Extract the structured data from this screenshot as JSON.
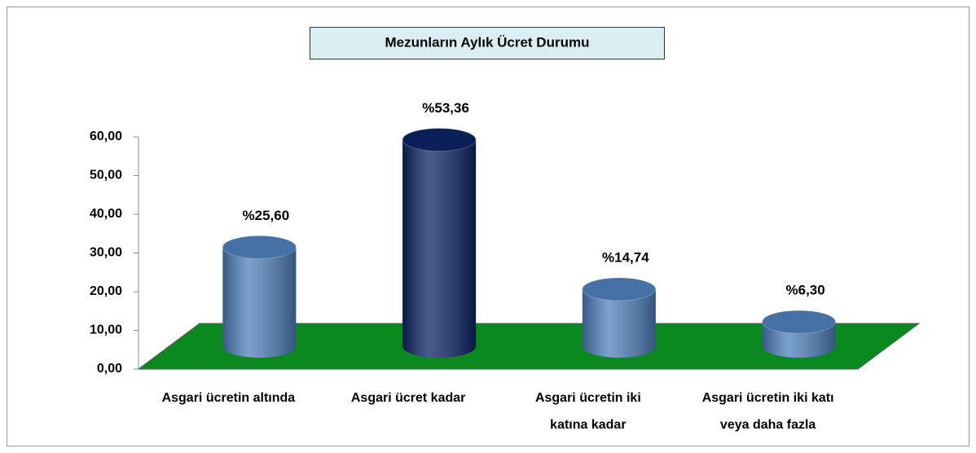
{
  "chart_data": {
    "type": "bar",
    "title": "Mezunların Aylık Ücret Durumu",
    "categories": [
      "Asgari ücretin altında",
      "Asgari ücret kadar",
      "Asgari ücretin iki katına kadar",
      "Asgari ücretin iki katı veya daha fazla"
    ],
    "values": [
      25.6,
      53.36,
      14.74,
      6.3
    ],
    "value_labels": [
      "%25,60",
      "%53,36",
      "%14,74",
      "%6,30"
    ],
    "colors": [
      "#4f81bd",
      "#0d2566",
      "#4f81bd",
      "#4f81bd"
    ],
    "floor_color": "#0a8a1e",
    "ylim": [
      0,
      60
    ],
    "yticks": [
      {
        "value": 0,
        "label": "0,00"
      },
      {
        "value": 10,
        "label": "10,00"
      },
      {
        "value": 20,
        "label": "20,00"
      },
      {
        "value": 30,
        "label": "30,00"
      },
      {
        "value": 40,
        "label": "40,00"
      },
      {
        "value": 50,
        "label": "50,00"
      },
      {
        "value": 60,
        "label": "60,00"
      }
    ]
  }
}
